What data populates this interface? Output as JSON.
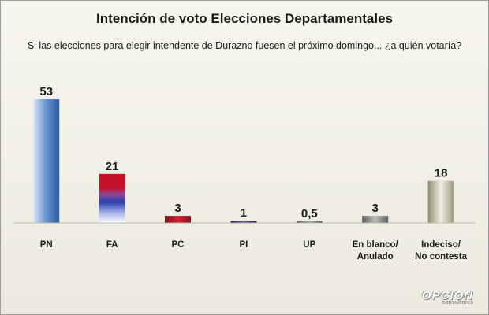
{
  "chart_data": {
    "type": "bar",
    "title": "Intención de voto Elecciones Departamentales",
    "subtitle": "Si las elecciones para elegir intendente de Durazno  fuesen el próximo  domingo... ¿a quién votaría?",
    "categories": [
      [
        "PN"
      ],
      [
        "FA"
      ],
      [
        "PC"
      ],
      [
        "PI"
      ],
      [
        "UP"
      ],
      [
        "En blanco/",
        "Anulado"
      ],
      [
        "Indeciso/",
        "No contesta"
      ]
    ],
    "values": [
      53,
      21,
      3,
      1,
      0.5,
      3,
      18
    ],
    "value_labels": [
      "53",
      "21",
      "3",
      "1",
      "0,5",
      "3",
      "18"
    ],
    "ylim": [
      0,
      53
    ],
    "xlabel": "",
    "ylabel": "",
    "grid": false,
    "legend": "none",
    "colors": {
      "PN": "#3a6aa8",
      "FA": [
        "#c4122a",
        "#2a3fb0",
        "#ffffff"
      ],
      "PC": "#b3121f",
      "PI": "#3b2f7a",
      "UP": "#777777",
      "En blanco/Anulado": "#8a8a8a",
      "Indeciso/No contesta": "#c9c6b0"
    }
  },
  "branding": {
    "logo_text": "OPCION",
    "logo_subtext": "consultores"
  }
}
